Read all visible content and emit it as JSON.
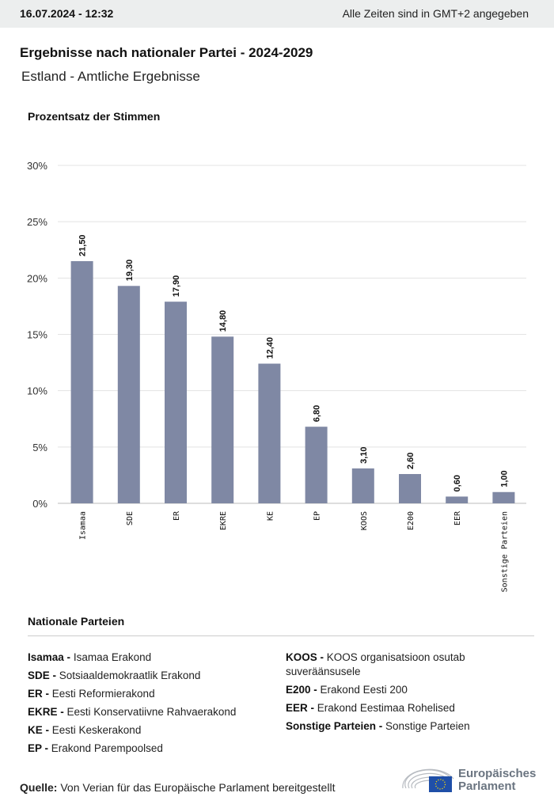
{
  "header": {
    "date": "16.07.2024 - 12:32",
    "timezone": "Alle Zeiten sind in GMT+2 angegeben"
  },
  "title": "Ergebnisse nach nationaler Partei - 2024-2029",
  "subtitle": "Estland - Amtliche Ergebnisse",
  "chart_data": {
    "type": "bar",
    "ylabel": "Prozentsatz der Stimmen",
    "ylim": [
      0,
      30
    ],
    "yticks": [
      "0%",
      "5%",
      "10%",
      "15%",
      "20%",
      "25%",
      "30%"
    ],
    "categories": [
      "Isamaa",
      "SDE",
      "ER",
      "EKRE",
      "KE",
      "EP",
      "KOOS",
      "E200",
      "EER",
      "Sonstige Parteien"
    ],
    "values": [
      21.5,
      19.3,
      17.9,
      14.8,
      12.4,
      6.8,
      3.1,
      2.6,
      0.6,
      1.0
    ],
    "labels": [
      "21,50",
      "19,30",
      "17,90",
      "14,80",
      "12,40",
      "6,80",
      "3,10",
      "2,60",
      "0,60",
      "1,00"
    ],
    "color": "#7f88a4",
    "grid": true
  },
  "legend": {
    "title": "Nationale Parteien",
    "col1": [
      {
        "abbr": "Isamaa -",
        "name": "Isamaa Erakond"
      },
      {
        "abbr": "SDE -",
        "name": "Sotsiaaldemokraatlik Erakond"
      },
      {
        "abbr": "ER -",
        "name": "Eesti Reformierakond"
      },
      {
        "abbr": "EKRE -",
        "name": "Eesti Konservatiivne Rahvaerakond"
      },
      {
        "abbr": "KE -",
        "name": "Eesti Keskerakond"
      },
      {
        "abbr": "EP -",
        "name": "Erakond Parempoolsed"
      }
    ],
    "col2": [
      {
        "abbr": "KOOS -",
        "name": "KOOS organisatsioon osutab suveräänsusele"
      },
      {
        "abbr": "E200 -",
        "name": "Erakond Eesti 200"
      },
      {
        "abbr": "EER -",
        "name": "Erakond Eestimaa Rohelised"
      },
      {
        "abbr": "Sonstige Parteien -",
        "name": "Sonstige Parteien"
      }
    ]
  },
  "source": {
    "label": "Quelle:",
    "text": "Von Verian für das Europäische Parlament bereitgestellt"
  },
  "logo": {
    "line1": "Europäisches",
    "line2": "Parlament"
  }
}
